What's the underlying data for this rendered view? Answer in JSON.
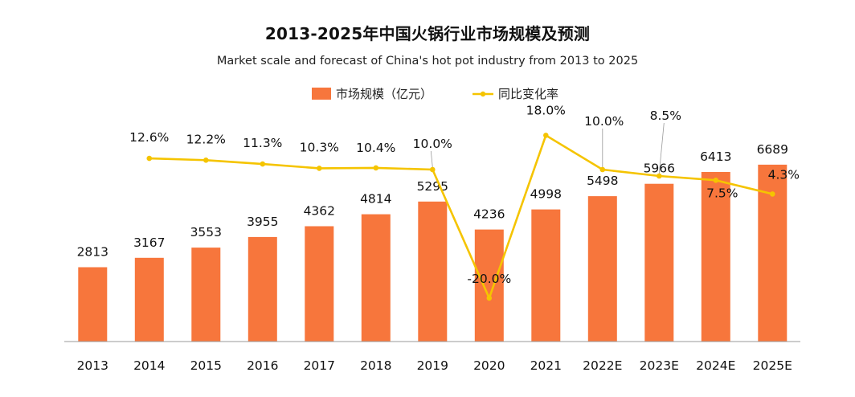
{
  "chart_data": {
    "type": "bar",
    "title": "2013-2025年中国火锅行业市场规模及预测",
    "subtitle": "Market scale and forecast of China's hot pot industry from 2013 to 2025",
    "categories": [
      "2013",
      "2014",
      "2015",
      "2016",
      "2017",
      "2018",
      "2019",
      "2020",
      "2021",
      "2022E",
      "2023E",
      "2024E",
      "2025E"
    ],
    "series": [
      {
        "name": "市场规模（亿元）",
        "kind": "bar",
        "color": "#F7763C",
        "values": [
          2813,
          3167,
          3553,
          3955,
          4362,
          4814,
          5295,
          4236,
          4998,
          5498,
          5966,
          6413,
          6689
        ]
      },
      {
        "name": "同比变化率",
        "kind": "line",
        "color": "#F5C400",
        "values": [
          null,
          12.6,
          12.2,
          11.3,
          10.3,
          10.4,
          10.0,
          -20.0,
          18.0,
          10.0,
          8.5,
          7.5,
          4.3
        ],
        "labels": [
          "",
          "12.6%",
          "12.2%",
          "11.3%",
          "10.3%",
          "10.4%",
          "10.0%",
          "-20.0%",
          "18.0%",
          "10.0%",
          "8.5%",
          "7.5%",
          "4.3%"
        ]
      }
    ],
    "legend_position": "top-center",
    "grid": false,
    "xlabel": "",
    "ylabel": "",
    "ylim_bars": [
      0,
      7500
    ],
    "ylim_line": [
      -20,
      18
    ]
  }
}
